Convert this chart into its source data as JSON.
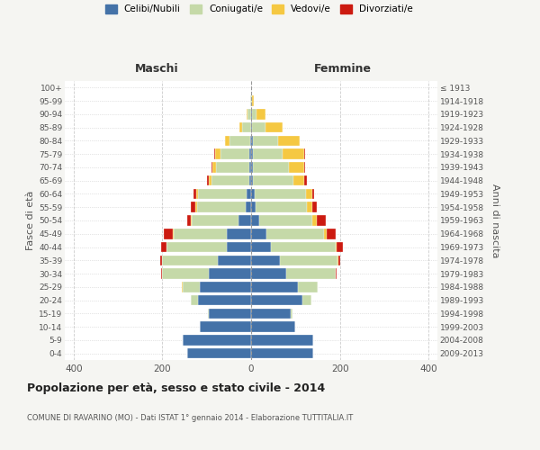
{
  "age_groups": [
    "0-4",
    "5-9",
    "10-14",
    "15-19",
    "20-24",
    "25-29",
    "30-34",
    "35-39",
    "40-44",
    "45-49",
    "50-54",
    "55-59",
    "60-64",
    "65-69",
    "70-74",
    "75-79",
    "80-84",
    "85-89",
    "90-94",
    "95-99",
    "100+"
  ],
  "birth_years": [
    "2009-2013",
    "2004-2008",
    "1999-2003",
    "1994-1998",
    "1989-1993",
    "1984-1988",
    "1979-1983",
    "1974-1978",
    "1969-1973",
    "1964-1968",
    "1959-1963",
    "1954-1958",
    "1949-1953",
    "1944-1948",
    "1939-1943",
    "1934-1938",
    "1929-1933",
    "1924-1928",
    "1919-1923",
    "1914-1918",
    "≤ 1913"
  ],
  "male": {
    "celibe": [
      145,
      155,
      115,
      95,
      120,
      115,
      95,
      75,
      55,
      55,
      28,
      12,
      10,
      5,
      5,
      5,
      3,
      1,
      0,
      0,
      0
    ],
    "coniugato": [
      0,
      0,
      0,
      3,
      15,
      40,
      105,
      125,
      135,
      120,
      105,
      110,
      110,
      85,
      75,
      65,
      45,
      20,
      8,
      2,
      0
    ],
    "vedovo": [
      0,
      0,
      0,
      0,
      0,
      2,
      0,
      0,
      0,
      1,
      2,
      3,
      4,
      5,
      8,
      12,
      10,
      6,
      2,
      0,
      0
    ],
    "divorziato": [
      0,
      0,
      0,
      0,
      0,
      0,
      2,
      5,
      12,
      20,
      10,
      10,
      5,
      5,
      2,
      2,
      0,
      0,
      0,
      0,
      0
    ]
  },
  "female": {
    "nubile": [
      140,
      140,
      100,
      90,
      115,
      105,
      80,
      65,
      45,
      35,
      18,
      10,
      8,
      5,
      5,
      5,
      5,
      2,
      2,
      0,
      0
    ],
    "coniugata": [
      0,
      0,
      0,
      3,
      20,
      45,
      110,
      130,
      145,
      130,
      120,
      115,
      115,
      90,
      80,
      65,
      55,
      30,
      10,
      2,
      0
    ],
    "vedova": [
      0,
      0,
      0,
      0,
      0,
      0,
      0,
      1,
      2,
      5,
      10,
      12,
      15,
      25,
      35,
      50,
      50,
      40,
      20,
      5,
      1
    ],
    "divorziata": [
      0,
      0,
      0,
      0,
      0,
      0,
      2,
      5,
      15,
      20,
      20,
      12,
      5,
      5,
      2,
      2,
      0,
      0,
      0,
      0,
      0
    ]
  },
  "colors": {
    "celibe": "#4472a8",
    "coniugato": "#c5d9a8",
    "vedovo": "#f5c842",
    "divorziato": "#cc1a10"
  },
  "xlim": 420,
  "title": "Popolazione per età, sesso e stato civile - 2014",
  "subtitle": "COMUNE DI RAVARINO (MO) - Dati ISTAT 1° gennaio 2014 - Elaborazione TUTTITALIA.IT",
  "xlabel_left": "Maschi",
  "xlabel_right": "Femmine",
  "ylabel_left": "Fasce di età",
  "ylabel_right": "Anni di nascita",
  "background_color": "#f5f5f2",
  "plot_bg": "#ffffff"
}
